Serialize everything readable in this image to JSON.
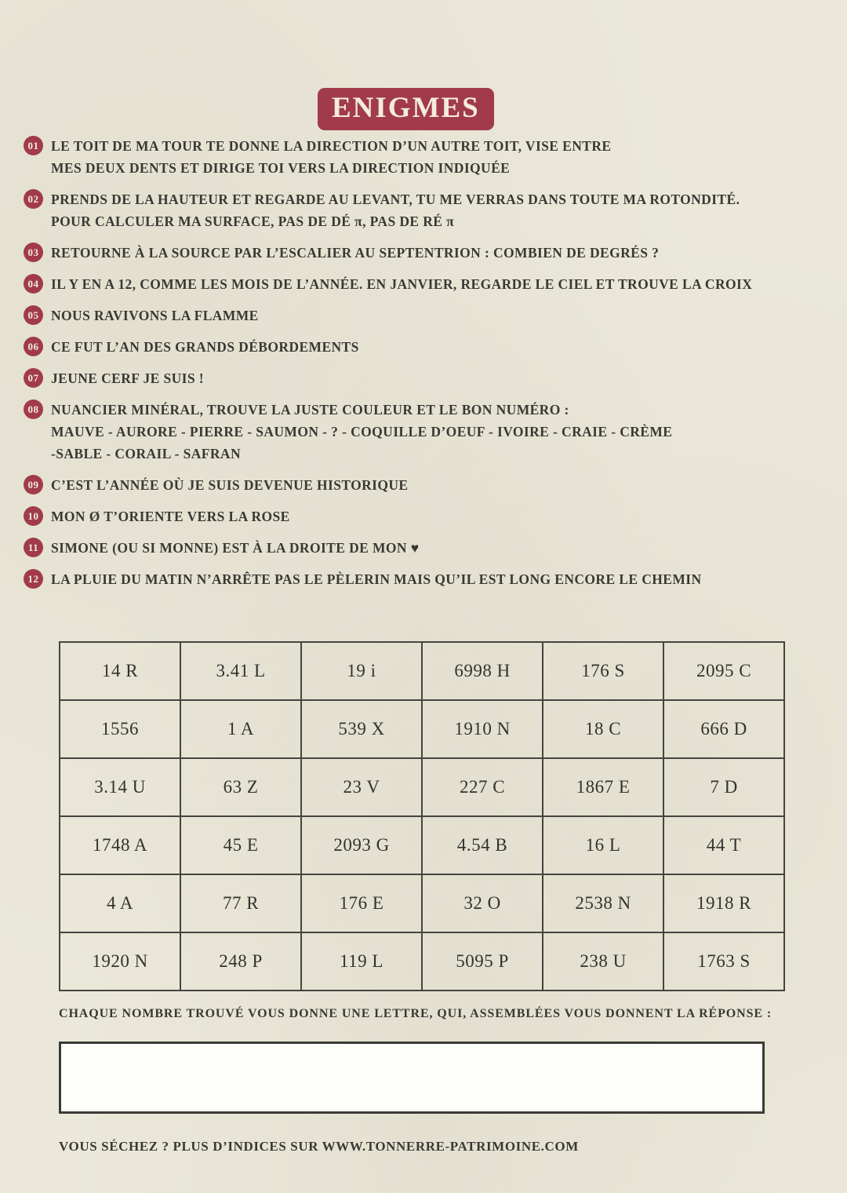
{
  "title": "ENIGMES",
  "riddles": [
    {
      "num": "01",
      "lines": [
        "LE TOIT DE MA TOUR TE DONNE LA DIRECTION D’UN AUTRE TOIT, VISE ENTRE",
        "MES DEUX DENTS ET DIRIGE TOI VERS LA DIRECTION INDIQUÉE"
      ]
    },
    {
      "num": "02",
      "lines": [
        "PRENDS DE LA HAUTEUR ET REGARDE AU LEVANT, TU ME VERRAS DANS TOUTE MA ROTONDITÉ.",
        "POUR CALCULER MA SURFACE, PAS DE DÉ π, PAS DE RÉ π"
      ]
    },
    {
      "num": "03",
      "lines": [
        "RETOURNE À LA SOURCE PAR L’ESCALIER AU SEPTENTRION : COMBIEN DE DEGRÉS ?"
      ]
    },
    {
      "num": "04",
      "lines": [
        "IL Y EN A 12, COMME LES MOIS DE L’ANNÉE. EN JANVIER, REGARDE LE CIEL ET TROUVE LA CROIX"
      ]
    },
    {
      "num": "05",
      "lines": [
        "NOUS RAVIVONS LA FLAMME"
      ]
    },
    {
      "num": "06",
      "lines": [
        "CE FUT L’AN DES GRANDS DÉBORDEMENTS"
      ]
    },
    {
      "num": "07",
      "lines": [
        "JEUNE CERF JE SUIS !"
      ]
    },
    {
      "num": "08",
      "lines": [
        "NUANCIER MINÉRAL, TROUVE LA JUSTE COULEUR ET LE BON NUMÉRO :",
        "MAUVE - AURORE - PIERRE - SAUMON - ? - COQUILLE D’OEUF - IVOIRE - CRAIE - CRÈME",
        "-SABLE - CORAIL - SAFRAN"
      ]
    },
    {
      "num": "09",
      "lines": [
        "C’EST L’ANNÉE OÙ JE SUIS DEVENUE HISTORIQUE"
      ]
    },
    {
      "num": "10",
      "lines": [
        "MON Ø T’ORIENTE VERS LA ROSE"
      ]
    },
    {
      "num": "11",
      "lines": [
        "SIMONE (OU SI MONNE) EST À LA DROITE DE MON ♥"
      ]
    },
    {
      "num": "12",
      "lines": [
        "LA PLUIE DU MATIN N’ARRÊTE PAS LE PÈLERIN MAIS QU’IL EST LONG ENCORE LE CHEMIN"
      ]
    }
  ],
  "grid": {
    "rows": [
      [
        "14 R",
        "3.41 L",
        "19 i",
        "6998 H",
        "176 S",
        "2095 C"
      ],
      [
        "1556",
        "1 A",
        "539 X",
        "1910 N",
        "18 C",
        "666 D"
      ],
      [
        "3.14 U",
        "63 Z",
        "23 V",
        "227 C",
        "1867 E",
        "7 D"
      ],
      [
        "1748 A",
        "45 E",
        "2093 G",
        "4.54 B",
        "16 L",
        "44 T"
      ],
      [
        "4 A",
        "77 R",
        "176 E",
        "32 O",
        "2538 N",
        "1918 R"
      ],
      [
        "1920 N",
        "248 P",
        "119 L",
        "5095 P",
        "238 U",
        "1763 S"
      ]
    ]
  },
  "instruction": "CHAQUE NOMBRE TROUVÉ VOUS DONNE UNE LETTRE, QUI, ASSEMBLÉES VOUS DONNENT LA RÉPONSE :",
  "answer_box": {
    "value": ""
  },
  "footer": "VOUS SÉCHEZ ? PLUS D’INDICES SUR WWW.TONNERRE-PATRIMOINE.COM",
  "colors": {
    "paper": "#ebe8da",
    "maroon": "#a13b4a",
    "ink": "#3a3833",
    "cream": "#f3ecdb",
    "grid_border": "#45443f"
  }
}
